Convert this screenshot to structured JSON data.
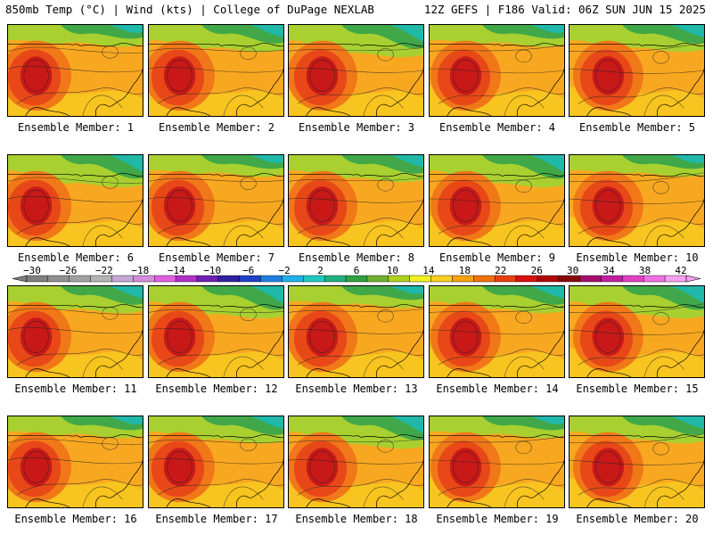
{
  "header": {
    "left_title": "850mb Temp (°C) | Wind (kts) | College of DuPage NEXLAB",
    "right_title": "12Z GEFS | F186 Valid: 06Z SUN JUN 15 2025"
  },
  "panels": [
    {
      "label": "Ensemble Member: 1"
    },
    {
      "label": "Ensemble Member: 2"
    },
    {
      "label": "Ensemble Member: 3"
    },
    {
      "label": "Ensemble Member: 4"
    },
    {
      "label": "Ensemble Member: 5"
    },
    {
      "label": "Ensemble Member: 6"
    },
    {
      "label": "Ensemble Member: 7"
    },
    {
      "label": "Ensemble Member: 8"
    },
    {
      "label": "Ensemble Member: 9"
    },
    {
      "label": "Ensemble Member: 10"
    },
    {
      "label": "Ensemble Member: 11"
    },
    {
      "label": "Ensemble Member: 12"
    },
    {
      "label": "Ensemble Member: 13"
    },
    {
      "label": "Ensemble Member: 14"
    },
    {
      "label": "Ensemble Member: 15"
    },
    {
      "label": "Ensemble Member: 16"
    },
    {
      "label": "Ensemble Member: 17"
    },
    {
      "label": "Ensemble Member: 18"
    },
    {
      "label": "Ensemble Member: 19"
    },
    {
      "label": "Ensemble Member: 20"
    }
  ],
  "colorbar": {
    "labels": [
      "−30",
      "−26",
      "−22",
      "−18",
      "−14",
      "−10",
      "−6",
      "−2",
      "2",
      "6",
      "10",
      "14",
      "18",
      "22",
      "26",
      "30",
      "34",
      "38",
      "42"
    ],
    "colors": [
      "#7f7f7f",
      "#909090",
      "#a2a2a2",
      "#b4b4b4",
      "#c6a6d6",
      "#d48cd8",
      "#e060e0",
      "#b030c8",
      "#7020b0",
      "#3020a0",
      "#2040c8",
      "#2080e0",
      "#20b0e8",
      "#20c8c0",
      "#20b080",
      "#30a040",
      "#70b030",
      "#b0d020",
      "#f0f020",
      "#f8d020",
      "#f8a010",
      "#f07010",
      "#e84010",
      "#d81010",
      "#b00808",
      "#880808",
      "#a0106a",
      "#c020a0",
      "#e040c0",
      "#f070e0",
      "#f8a0f0"
    ],
    "map_colors": {
      "hot_core": "#c81818",
      "hot": "#e84818",
      "warm": "#f07818",
      "mild": "#f8a820",
      "cool": "#f8d020",
      "cooler": "#a8d030",
      "cold": "#40a848",
      "colder": "#20b8a8"
    }
  }
}
